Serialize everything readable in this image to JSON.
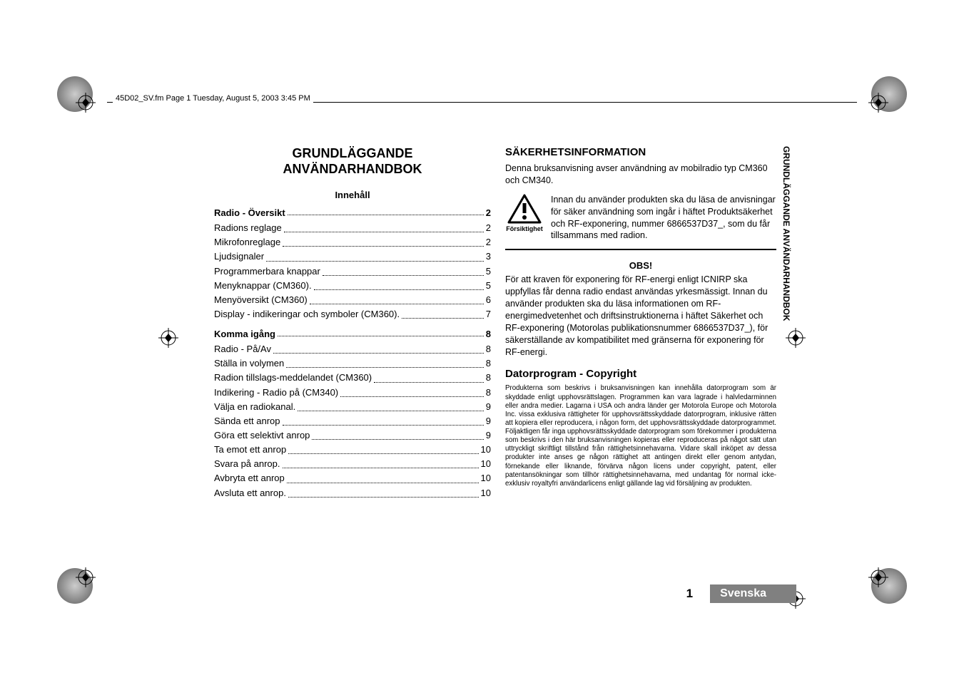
{
  "header_text": "45D02_SV.fm  Page 1  Tuesday, August 5, 2003  3:45 PM",
  "doc_title_line1": "GRUNDLÄGGANDE",
  "doc_title_line2": "ANVÄNDARHANDBOK",
  "toc_header": "Innehåll",
  "toc": [
    {
      "label": "Radio - Översikt",
      "page": "2",
      "bold": true
    },
    {
      "label": "Radions reglage",
      "page": "2",
      "bold": false
    },
    {
      "label": "Mikrofonreglage",
      "page": "2",
      "bold": false
    },
    {
      "label": "Ljudsignaler",
      "page": "3",
      "bold": false
    },
    {
      "label": "Programmerbara knappar",
      "page": "5",
      "bold": false
    },
    {
      "label": "Menyknappar (CM360).",
      "page": "5",
      "bold": false
    },
    {
      "label": "Menyöversikt (CM360)",
      "page": "6",
      "bold": false
    },
    {
      "label": "Display - indikeringar och symboler (CM360).",
      "page": "7",
      "bold": false
    },
    {
      "label": "Komma igång",
      "page": "8",
      "bold": true
    },
    {
      "label": "Radio - På/Av",
      "page": "8",
      "bold": false
    },
    {
      "label": "Ställa in volymen",
      "page": "8",
      "bold": false
    },
    {
      "label": "Radion tillslags-meddelandet (CM360)",
      "page": "8",
      "bold": false
    },
    {
      "label": "Indikering - Radio på (CM340)",
      "page": "8",
      "bold": false
    },
    {
      "label": "Välja en radiokanal.",
      "page": "9",
      "bold": false
    },
    {
      "label": "Sända ett anrop",
      "page": "9",
      "bold": false
    },
    {
      "label": "Göra ett selektivt anrop",
      "page": "9",
      "bold": false
    },
    {
      "label": "Ta emot ett anrop",
      "page": "10",
      "bold": false
    },
    {
      "label": "Svara på anrop.",
      "page": "10",
      "bold": false
    },
    {
      "label": "Avbryta ett anrop",
      "page": "10",
      "bold": false
    },
    {
      "label": "Avsluta ett anrop.",
      "page": "10",
      "bold": false
    }
  ],
  "safety_heading": "SÄKERHETSINFORMATION",
  "safety_intro": "Denna bruksanvisning avser användning av mobilradio typ CM360 och CM340.",
  "caution_label": "Försiktighet",
  "caution_text": "Innan du använder produkten ska du läsa de anvisningar för säker användning som ingår i häftet Produktsäkerhet och RF-exponering, nummer 6866537D37_, som du får tillsammans med radion.",
  "obs_heading": "OBS!",
  "obs_text": "För att kraven för exponering för RF-energi enligt ICNIRP ska uppfyllas får denna radio endast användas yrkesmässigt. Innan du använder produkten ska du läsa informationen om RF-energimedvetenhet och driftsinstruktionerna i häftet Säkerhet och RF-exponering (Motorolas publikationsnummer 6866537D37_), för säkerställande av kompatibilitet med gränserna för exponering för RF-energi.",
  "copyright_heading": "Datorprogram - Copyright",
  "copyright_text": "Produkterna som beskrivs i bruksanvisningen kan innehålla datorprogram som är skyddade enligt upphovsrättslagen. Programmen kan vara lagrade i halvledarminnen eller andra medier. Lagarna i USA och andra länder ger Motorola Europe och Motorola Inc. vissa exklusiva rättigheter för upphovsrättsskyddade datorprogram, inklusive rätten att kopiera eller reproducera, i någon form, det upphovsrättsskyddade datorprogrammet. Följaktligen får inga upphovsrättsskyddade datorprogram som förekommer i produkterna som beskrivs i den här bruksanvisningen kopieras eller reproduceras på något sätt utan uttryckligt skriftligt tillstånd från rättighetsinnehavarna. Vidare skall inköpet av dessa produkter inte anses ge någon rättighet att antingen direkt eller genom antydan, förnekande eller liknande, förvärva någon licens under copyright, patent, eller patentansökningar som tillhör rättighetsinnehavarna, med undantag för normal icke-exklusiv royaltyfri användarlicens enligt gällande lag vid försäljning av produkten.",
  "side_tab_text": "GRUNDLÄGGANDE ANVÄNDARHANDBOK",
  "page_number": "1",
  "lang_badge": "Svenska"
}
